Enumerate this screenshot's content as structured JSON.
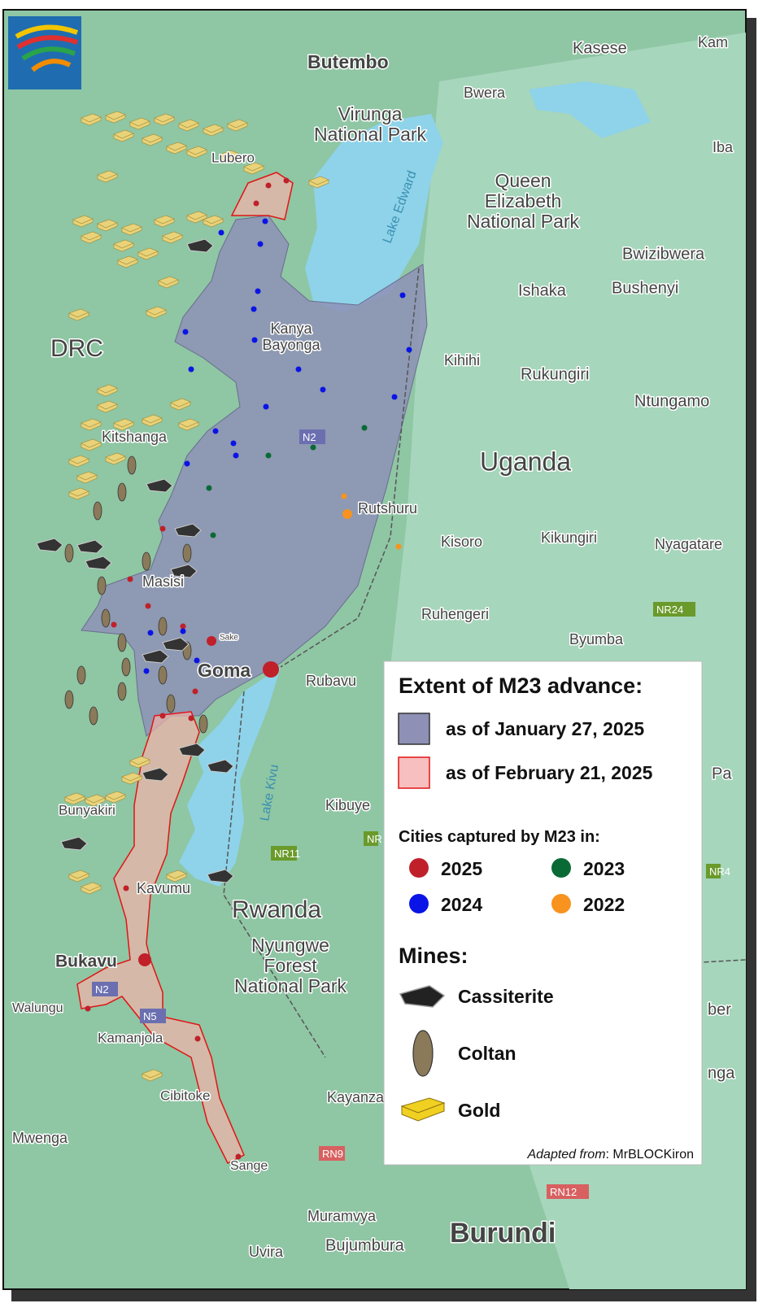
{
  "places": [
    "Butembo",
    "Kasese",
    "Kam",
    "Bwera",
    "Lubero",
    "Iba",
    "Bwizibwera",
    "Ishaka",
    "Bushenyi",
    "Kihihi",
    "Rukungiri",
    "Ntungamo",
    "Kitshanga",
    "Rutshuru",
    "Kisoro",
    "Kikungiri",
    "Nyagatare",
    "Masisi",
    "Ruhengeri",
    "Byumba",
    "Sake",
    "Goma",
    "Rubavu",
    "Kibuye",
    "Bunyakiri",
    "Kavumu",
    "Bukavu",
    "Walungu",
    "Kamanjola",
    "Cibitoke",
    "Kayanza",
    "Mwenga",
    "Sange",
    "Muramvya",
    "Uvira",
    "Bujumbura",
    "Pa",
    "ber",
    "nga"
  ],
  "towns": [
    {
      "lines": [
        "Kanya",
        "Bayonga"
      ]
    }
  ],
  "areas": [
    {
      "lines": [
        "Virunga",
        "National Park"
      ]
    },
    {
      "lines": [
        "Queen",
        "Elizabeth",
        "National Park"
      ]
    },
    {
      "lines": [
        "Nyungwe",
        "Forest",
        "National Park"
      ]
    }
  ],
  "countries": [
    "DRC",
    "Uganda",
    "Rwanda",
    "Burundi"
  ],
  "lakes": [
    "Lake Edward",
    "Lake Kivu"
  ],
  "roads": [
    "N2",
    "NR24",
    "NR11",
    "NR",
    "NR4",
    "N2",
    "N5",
    "RN9",
    "RN12"
  ],
  "legend": {
    "title": "Extent of M23 advance:",
    "extents": [
      {
        "label": "as of January 27, 2025",
        "color": "#8e90b6"
      },
      {
        "label": "as of February 21, 2025",
        "color": "#f7bfbf"
      }
    ],
    "cities_title": "Cities captured by M23 in:",
    "cities": [
      {
        "label": "2025",
        "color": "#c0202a"
      },
      {
        "label": "2023",
        "color": "#0a6a35"
      },
      {
        "label": "2024",
        "color": "#0a14e6"
      },
      {
        "label": "2022",
        "color": "#f7931e"
      }
    ],
    "mines_title": "Mines:",
    "mines": [
      "Cassiterite",
      "Coltan",
      "Gold"
    ],
    "credit_prefix": "Adapted from",
    "credit": ": MrBLOCKiron"
  }
}
